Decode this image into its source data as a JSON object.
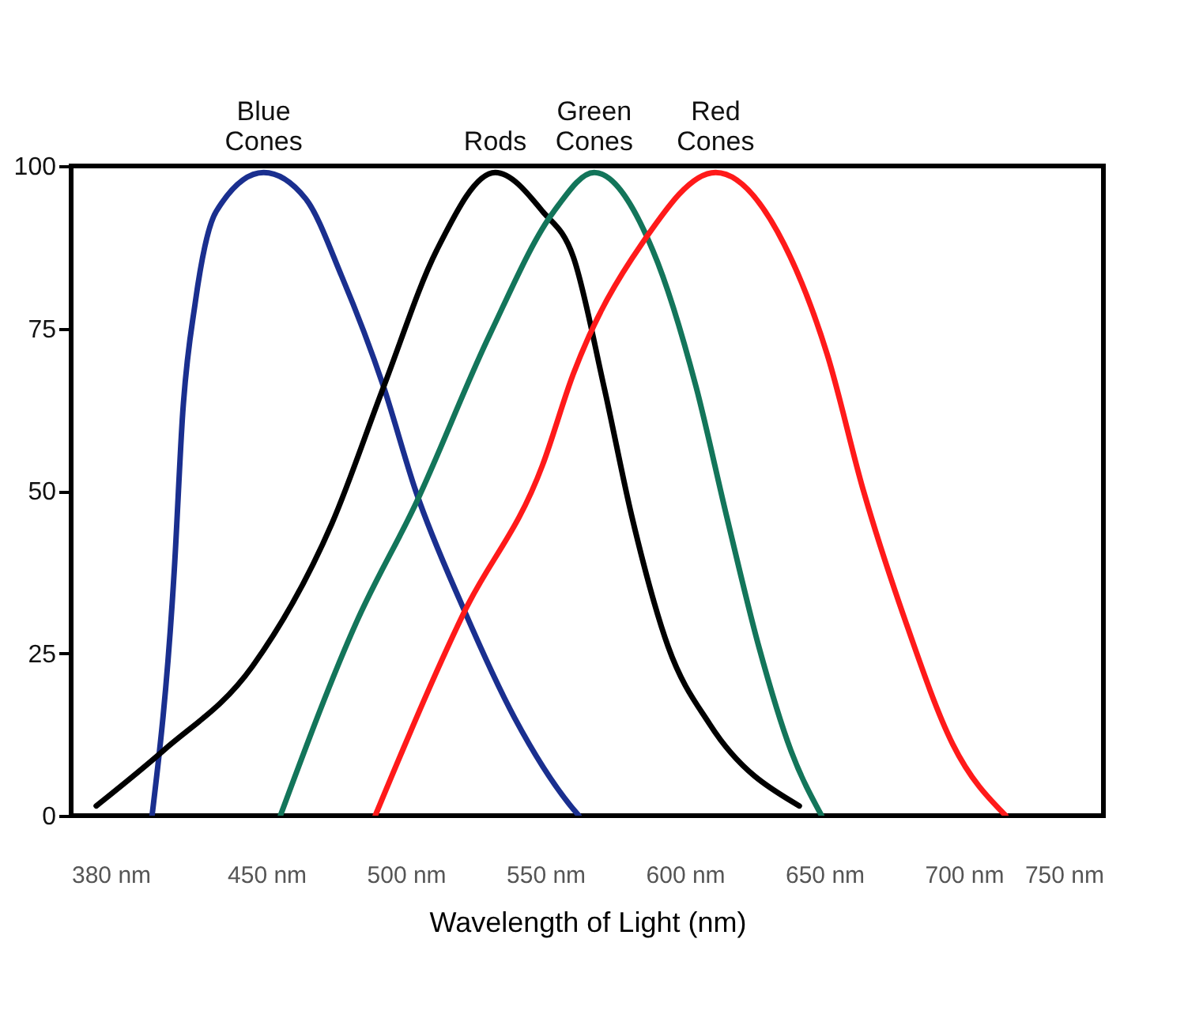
{
  "chart_data": {
    "type": "line",
    "xlabel": "Wavelength of Light (nm)",
    "xlim": [
      380,
      750
    ],
    "xticks": [
      {
        "value": 380,
        "label": "380 nm"
      },
      {
        "value": 450,
        "label": "450 nm"
      },
      {
        "value": 500,
        "label": "500 nm"
      },
      {
        "value": 550,
        "label": "550 nm"
      },
      {
        "value": 600,
        "label": "600 nm"
      },
      {
        "value": 650,
        "label": "650 nm"
      },
      {
        "value": 700,
        "label": "700 nm"
      },
      {
        "value": 750,
        "label": "750 nm"
      }
    ],
    "ylim": [
      0,
      100
    ],
    "yticks": [
      0,
      25,
      50,
      75,
      100
    ],
    "grid": false,
    "marker": "none",
    "line_style": "solid",
    "series": [
      {
        "name": "Blue Cones",
        "color": "#1a2f8f",
        "x": [
          409,
          417,
          420,
          424.5,
          432,
          449,
          464,
          477,
          492,
          503.5,
          520.5,
          539,
          560,
          562
        ],
        "values": [
          0,
          38,
          62,
          79,
          93,
          99,
          95,
          83,
          66,
          50,
          32,
          15,
          1,
          0
        ]
      },
      {
        "name": "Rods",
        "color": "#000000",
        "x": [
          389,
          413,
          445,
          473.5,
          492,
          511,
          532,
          549,
          560,
          571,
          581,
          594,
          609,
          641
        ],
        "values": [
          1.5,
          10,
          23,
          45,
          66,
          87,
          99,
          93,
          86,
          66,
          46,
          26,
          14,
          1.5
        ]
      },
      {
        "name": "Green Cones",
        "color": "#13755a",
        "x": [
          455,
          482.5,
          503.5,
          530,
          553,
          567.5,
          588.5,
          604,
          615,
          626.5,
          638,
          649
        ],
        "values": [
          0,
          30,
          48,
          74,
          93,
          99,
          87,
          66,
          46,
          26,
          10,
          0
        ]
      },
      {
        "name": "Red Cones",
        "color": "#ff1a1a",
        "x": [
          489,
          520.5,
          549,
          560,
          584.5,
          611,
          635.5,
          651,
          664,
          679,
          696,
          715
        ],
        "values": [
          0,
          31,
          54,
          68,
          88,
          99,
          88,
          71,
          50,
          30,
          11,
          0
        ]
      }
    ]
  }
}
